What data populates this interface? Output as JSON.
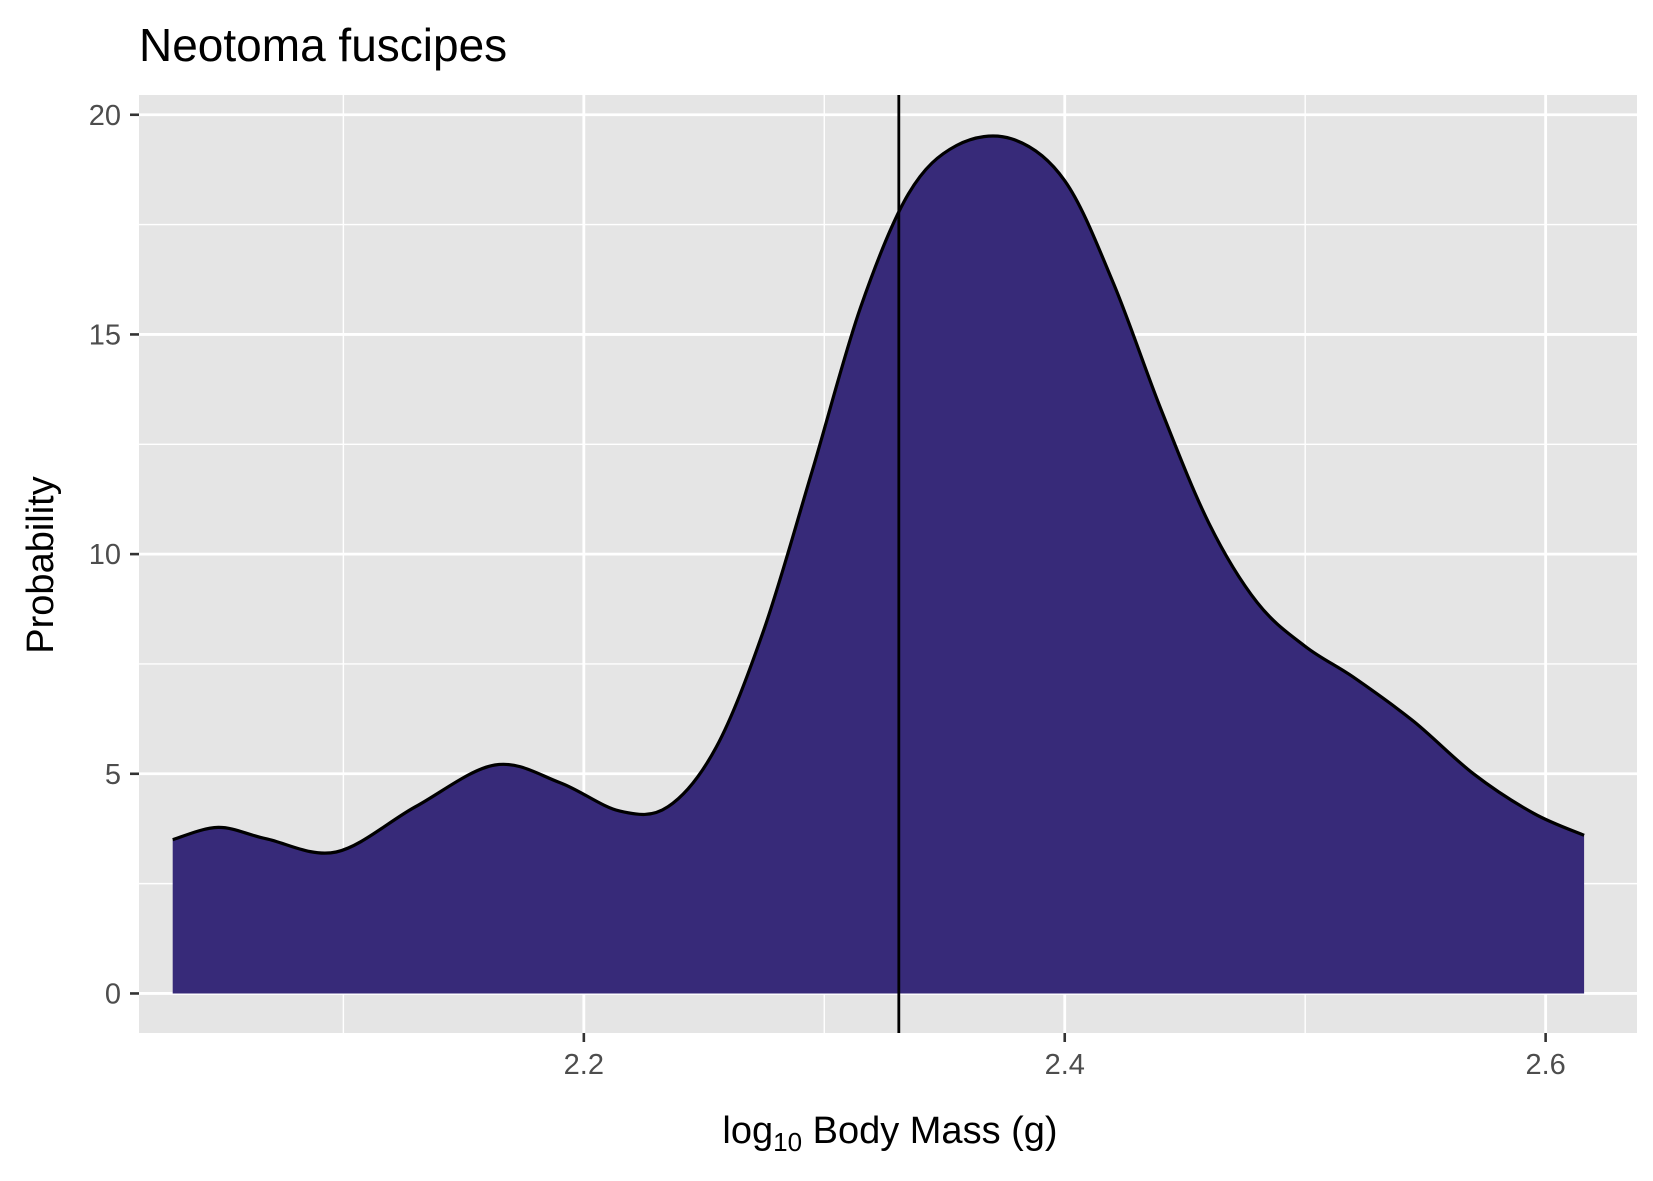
{
  "chart_data": {
    "type": "area",
    "title": "Neotoma fuscipes",
    "xlabel": {
      "main": "log",
      "sub": "10",
      "rest": " Body Mass (g)"
    },
    "ylabel": "Probability",
    "xlim": [
      2.015,
      2.638
    ],
    "ylim": [
      -0.9,
      20.45
    ],
    "x_ticks": [
      2.2,
      2.4,
      2.6
    ],
    "x_tick_labels": [
      "2.2",
      "2.4",
      "2.6"
    ],
    "y_ticks": [
      0,
      5,
      10,
      15,
      20
    ],
    "y_tick_labels": [
      "0",
      "5",
      "10",
      "15",
      "20"
    ],
    "grid": true,
    "legend": "none",
    "colors": {
      "fill": "#372a79",
      "outline": "#000000",
      "panel_background": "#e5e5e5",
      "grid": "#ffffff"
    },
    "vline_x": 2.331,
    "density": {
      "x": [
        2.029,
        2.048,
        2.068,
        2.097,
        2.13,
        2.163,
        2.19,
        2.215,
        2.235,
        2.255,
        2.275,
        2.295,
        2.315,
        2.335,
        2.355,
        2.378,
        2.4,
        2.42,
        2.44,
        2.46,
        2.48,
        2.5,
        2.52,
        2.545,
        2.57,
        2.595,
        2.616
      ],
      "y": [
        3.5,
        3.78,
        3.52,
        3.22,
        4.25,
        5.2,
        4.8,
        4.15,
        4.25,
        5.6,
        8.3,
        11.9,
        15.6,
        18.2,
        19.3,
        19.45,
        18.5,
        16.2,
        13.3,
        10.7,
        8.9,
        7.9,
        7.2,
        6.2,
        5.0,
        4.1,
        3.6
      ]
    }
  }
}
